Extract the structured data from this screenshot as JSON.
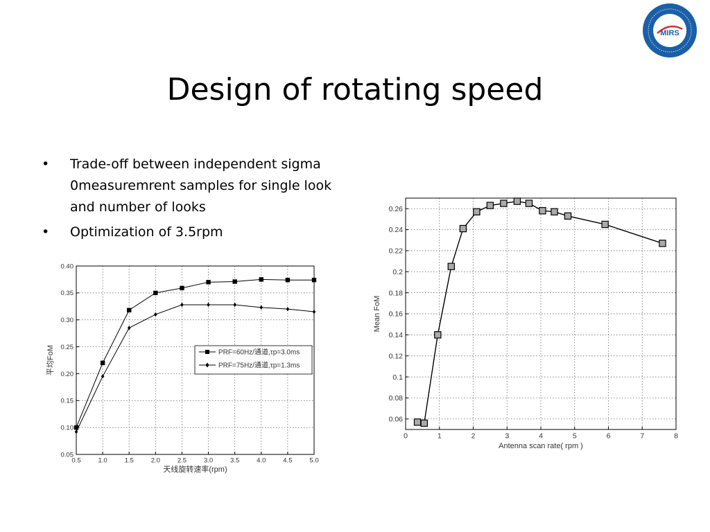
{
  "slide": {
    "title": "Design of rotating speed",
    "bullets": [
      "Trade-off between independent sigma 0measuremrent samples for single look and number of looks",
      "Optimization of 3.5rpm"
    ],
    "bullet_symbol": "•"
  },
  "logo": {
    "text": "MIRS",
    "colors": {
      "ring": "#1a5fa8",
      "inner": "#ffffff",
      "mark": "#d32f2f"
    }
  },
  "chart_data": [
    {
      "type": "line",
      "x": [
        0.5,
        1.0,
        1.5,
        2.0,
        2.5,
        3.0,
        3.5,
        4.0,
        4.5,
        5.0
      ],
      "series": [
        {
          "name": "PRF=60Hz/通道,τp=3.0ms",
          "marker": "square",
          "values": [
            0.1,
            0.22,
            0.318,
            0.35,
            0.359,
            0.37,
            0.371,
            0.375,
            0.374,
            0.374
          ]
        },
        {
          "name": "PRF=75Hz/通道,τp=1.3ms",
          "marker": "diamond",
          "values": [
            0.092,
            0.195,
            0.285,
            0.31,
            0.328,
            0.328,
            0.328,
            0.323,
            0.32,
            0.315
          ]
        }
      ],
      "xlabel": "天线旋转速率(rpm)",
      "ylabel": "平均FoM",
      "xlim": [
        0.5,
        5.0
      ],
      "ylim": [
        0.05,
        0.4
      ],
      "x_ticks": [
        "0.5",
        "1.0",
        "1.5",
        "2.0",
        "2.5",
        "3.0",
        "3.5",
        "4.0",
        "4.5",
        "5.0"
      ],
      "y_ticks": [
        "0.05",
        "0.10",
        "0.15",
        "0.20",
        "0.25",
        "0.30",
        "0.35",
        "0.40"
      ],
      "grid": true,
      "legend": "center-right"
    },
    {
      "type": "line",
      "x": [
        0.35,
        0.55,
        0.95,
        1.35,
        1.7,
        2.1,
        2.5,
        2.9,
        3.3,
        3.65,
        4.05,
        4.4,
        4.8,
        5.9,
        7.6
      ],
      "series": [
        {
          "marker": "square",
          "values": [
            0.057,
            0.056,
            0.14,
            0.205,
            0.241,
            0.257,
            0.263,
            0.265,
            0.267,
            0.265,
            0.258,
            0.257,
            0.253,
            0.245,
            0.227
          ]
        }
      ],
      "xlabel": "Antenna scan rate( rpm )",
      "ylabel": "Mean FoM",
      "xlim": [
        0,
        8
      ],
      "ylim": [
        0.05,
        0.27
      ],
      "x_ticks": [
        "0",
        "1",
        "2",
        "3",
        "4",
        "5",
        "6",
        "7",
        "8"
      ],
      "y_ticks": [
        "0.06",
        "0.08",
        "0.1",
        "0.12",
        "0.14",
        "0.16",
        "0.18",
        "0.2",
        "0.22",
        "0.24",
        "0.26"
      ],
      "grid": true,
      "colors": {
        "marker_fill": "#aaaaaa",
        "line": "#000000"
      }
    }
  ]
}
